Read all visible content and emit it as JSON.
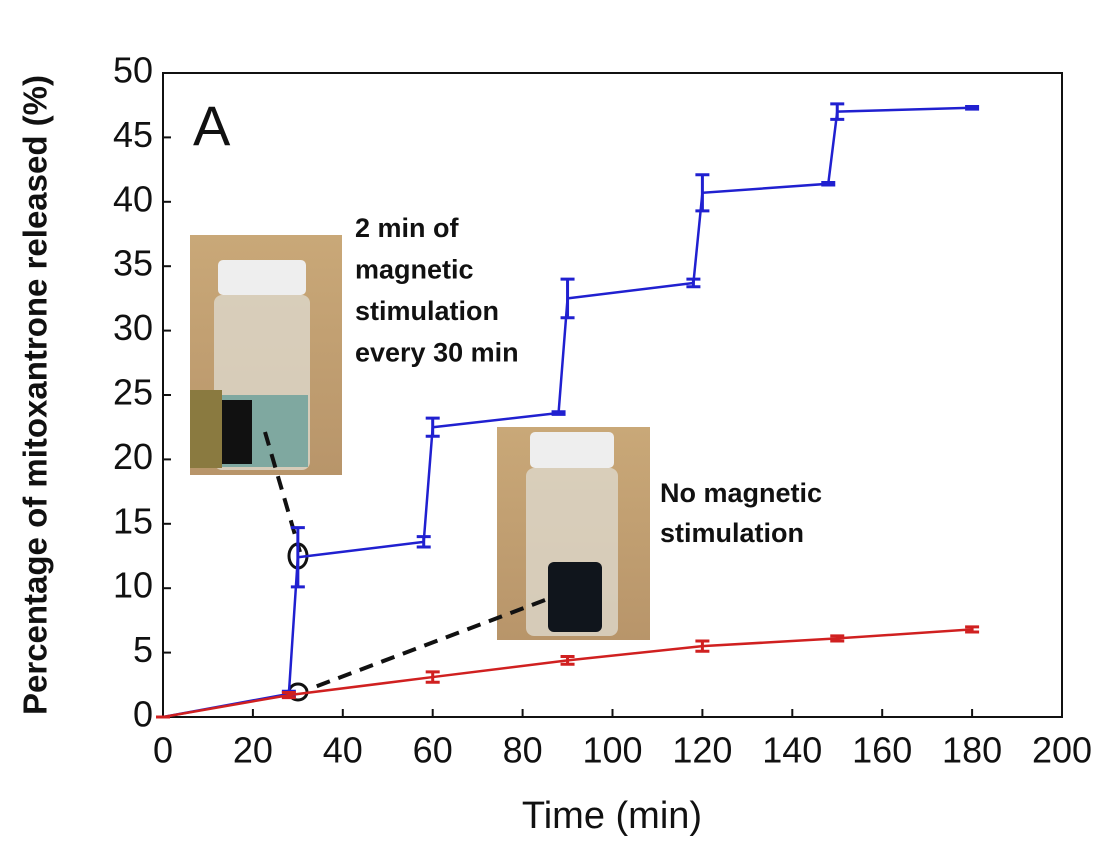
{
  "chart_data": {
    "type": "line",
    "xlabel": "Time (min)",
    "ylabel": "Percentage of mitoxantrone released (%)",
    "xlim": [
      0,
      200
    ],
    "xticks": [
      0,
      20,
      40,
      60,
      80,
      100,
      120,
      140,
      160,
      180,
      200
    ],
    "ylim": [
      0,
      50
    ],
    "yticks": [
      0,
      5,
      10,
      15,
      20,
      25,
      30,
      35,
      40,
      45,
      50
    ],
    "annotations": [
      "A",
      [
        "2 min of",
        "magnetic",
        "stimulation",
        "every 30 min"
      ],
      [
        "No magnetic",
        "stimulation"
      ]
    ],
    "series": [
      {
        "color": "#2020d0",
        "x": [
          0,
          28,
          30,
          58,
          60,
          88,
          90,
          118,
          120,
          148,
          150,
          180
        ],
        "values": [
          0,
          1.8,
          12.4,
          13.6,
          22.5,
          23.6,
          32.5,
          33.7,
          40.7,
          41.4,
          47.0,
          47.3
        ],
        "errors": [
          0,
          0.2,
          2.3,
          0.4,
          0.7,
          0.1,
          1.5,
          0.3,
          1.4,
          0.1,
          0.6,
          0.1
        ]
      },
      {
        "color": "#d02020",
        "x": [
          0,
          28,
          60,
          90,
          120,
          150,
          180
        ],
        "values": [
          0,
          1.7,
          3.1,
          4.4,
          5.5,
          6.1,
          6.8
        ],
        "errors": [
          0,
          0.2,
          0.4,
          0.3,
          0.4,
          0.2,
          0.2
        ]
      }
    ]
  }
}
